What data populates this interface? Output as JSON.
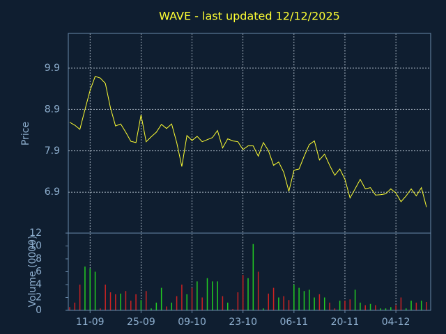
{
  "chart_data": {
    "type": "line",
    "title": "WAVE - last updated 12/12/2025",
    "ylabel": "Price",
    "color": "#ffff33",
    "grid": true,
    "ylim": [
      5.91,
      10.74
    ],
    "yticks": [
      6.9,
      7.9,
      8.9,
      9.9
    ],
    "categories": [
      null,
      null,
      null,
      null,
      "11-09",
      null,
      null,
      null,
      null,
      null,
      null,
      null,
      null,
      null,
      "25-09",
      null,
      null,
      null,
      null,
      null,
      null,
      null,
      null,
      null,
      "09-10",
      null,
      null,
      null,
      null,
      null,
      null,
      null,
      null,
      null,
      "23-10",
      null,
      null,
      null,
      null,
      null,
      null,
      null,
      null,
      null,
      "06-11",
      null,
      null,
      null,
      null,
      null,
      null,
      null,
      null,
      null,
      "20-11",
      null,
      null,
      null,
      null,
      null,
      null,
      null,
      null,
      null,
      "04-12",
      null,
      null,
      null,
      null,
      null,
      null
    ],
    "values": [
      8.59,
      8.52,
      8.42,
      8.9,
      9.36,
      9.7,
      9.66,
      9.53,
      8.94,
      8.5,
      8.55,
      8.35,
      8.13,
      8.1,
      8.77,
      8.12,
      8.24,
      8.35,
      8.54,
      8.44,
      8.55,
      8.1,
      7.52,
      8.27,
      8.15,
      8.25,
      8.12,
      8.17,
      8.22,
      8.39,
      7.97,
      8.19,
      8.14,
      8.12,
      7.93,
      8.02,
      8.02,
      7.77,
      8.1,
      7.9,
      7.55,
      7.63,
      7.38,
      6.92,
      7.43,
      7.46,
      7.77,
      8.05,
      8.14,
      7.68,
      7.82,
      7.55,
      7.31,
      7.46,
      7.21,
      6.76,
      6.98,
      7.21,
      6.98,
      7.01,
      6.83,
      6.84,
      6.86,
      6.98,
      6.88,
      6.67,
      6.81,
      6.98,
      6.81,
      7.01,
      6.54
    ],
    "volume": {
      "type": "bar",
      "ylabel": "Volume (0000)",
      "up_color": "#22cc22",
      "down_color": "#cc2222",
      "ylim": [
        0,
        12
      ],
      "yticks": [
        0,
        2,
        4,
        6,
        8,
        10,
        12
      ],
      "values": [
        0.5,
        1.2,
        4,
        6.8,
        6.5,
        6,
        0.3,
        4,
        2.8,
        2.5,
        2.6,
        3,
        1.5,
        2.5,
        1.6,
        3,
        0.3,
        1.2,
        3.5,
        0.6,
        1.2,
        2.2,
        4,
        2.5,
        3.5,
        4.5,
        2,
        5,
        4.5,
        4.5,
        2.2,
        1.2,
        0.2,
        2.8,
        5.5,
        5,
        10.3,
        6,
        0.3,
        2.6,
        3.5,
        2,
        2.2,
        1.6,
        4,
        3.5,
        3,
        3.2,
        2,
        2.5,
        2,
        1.2,
        0.3,
        1.5,
        1.5,
        1.7,
        3.2,
        1.2,
        0.8,
        1,
        0.8,
        0.3,
        0.3,
        0.5,
        0.8,
        2,
        0.3,
        1.5,
        1.2,
        1.5,
        1.3
      ]
    }
  }
}
